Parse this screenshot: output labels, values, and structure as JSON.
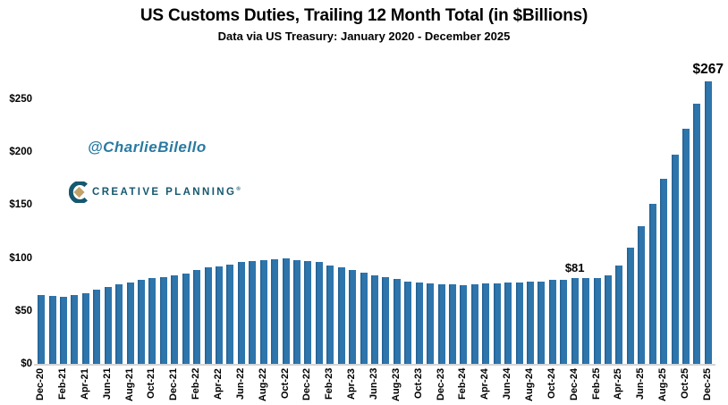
{
  "chart_data": {
    "type": "bar",
    "title": "US Customs Duties, Trailing 12 Month Total (in $Billions)",
    "subtitle": "Data via US Treasury: January 2020 - December 2025",
    "xlabel": "",
    "ylabel": "",
    "categories": [
      "Dec-20",
      "Jan-21",
      "Feb-21",
      "Mar-21",
      "Apr-21",
      "May-21",
      "Jun-21",
      "Jul-21",
      "Aug-21",
      "Sep-21",
      "Oct-21",
      "Nov-21",
      "Dec-21",
      "Jan-22",
      "Feb-22",
      "Mar-22",
      "Apr-22",
      "May-22",
      "Jun-22",
      "Jul-22",
      "Aug-22",
      "Sep-22",
      "Oct-22",
      "Nov-22",
      "Dec-22",
      "Jan-23",
      "Feb-23",
      "Mar-23",
      "Apr-23",
      "May-23",
      "Jun-23",
      "Jul-23",
      "Aug-23",
      "Sep-23",
      "Oct-23",
      "Nov-23",
      "Dec-23",
      "Jan-24",
      "Feb-24",
      "Mar-24",
      "Apr-24",
      "May-24",
      "Jun-24",
      "Jul-24",
      "Aug-24",
      "Sep-24",
      "Oct-24",
      "Nov-24",
      "Dec-24",
      "Jan-25",
      "Feb-25",
      "Mar-25",
      "Apr-25",
      "May-25",
      "Jun-25",
      "Jul-25",
      "Aug-25",
      "Sep-25",
      "Oct-25",
      "Nov-25",
      "Dec-25"
    ],
    "values": [
      65,
      64,
      63,
      65,
      67,
      70,
      73,
      75,
      77,
      79,
      81,
      82,
      84,
      85,
      89,
      91,
      92,
      94,
      96,
      97,
      98,
      99,
      100,
      98,
      97,
      96,
      93,
      91,
      89,
      86,
      84,
      82,
      80,
      78,
      77,
      76,
      75,
      75,
      74,
      75,
      76,
      76,
      77,
      77,
      78,
      78,
      79,
      79,
      81,
      81,
      81,
      84,
      93,
      110,
      130,
      151,
      175,
      198,
      222,
      246,
      267
    ],
    "ylim": [
      0,
      283
    ],
    "y_ticks": [
      0,
      50,
      100,
      150,
      200,
      250
    ],
    "y_tick_labels": [
      "$0",
      "$50",
      "$100",
      "$150",
      "$200",
      "$250"
    ],
    "x_label_interval": 2,
    "grid": "off",
    "legend": "none",
    "annotations": [
      {
        "category": "Dec-24",
        "label": "$81",
        "font_px": 13
      },
      {
        "category": "Dec-25",
        "label": "$267",
        "font_px": 15.5
      }
    ]
  },
  "watermarks": {
    "author_handle": "@CharlieBilello",
    "brand_name": "CREATIVE PLANNING",
    "brand_mark": "®"
  },
  "colors": {
    "bar": "#2E75AC",
    "handle_text": "#2A7AA1",
    "brand_text": "#15586F",
    "brand_gold": "#C3A269",
    "axis_line": "#D6D6D6",
    "text": "#000000"
  }
}
